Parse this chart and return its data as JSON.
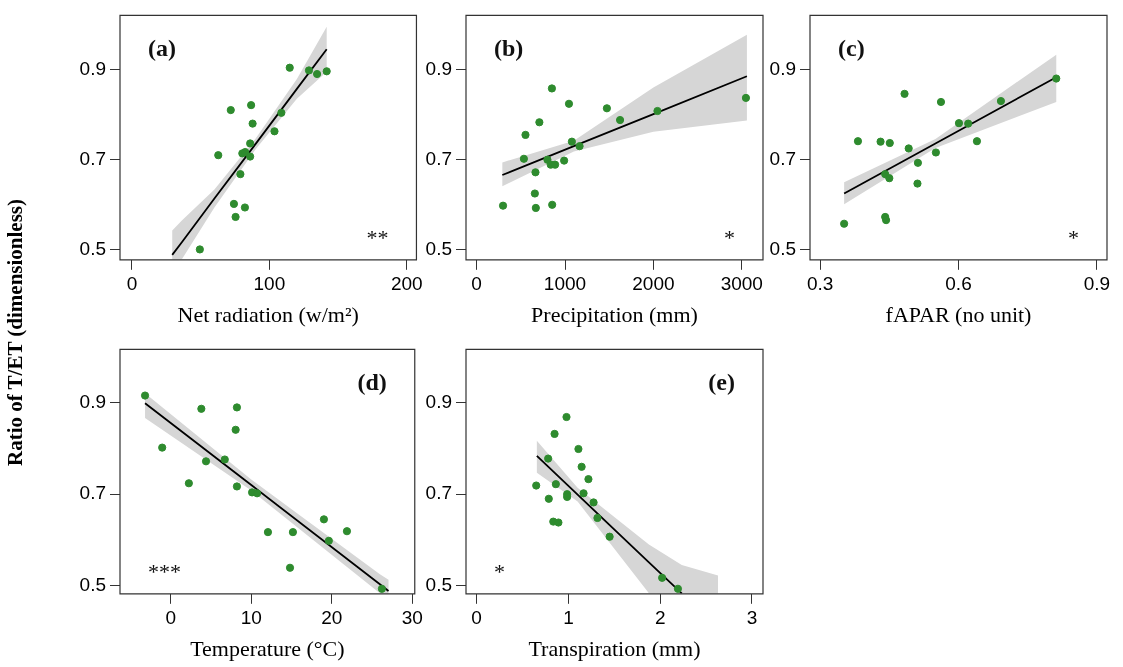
{
  "chart_data": [
    {
      "type": "scatter",
      "xlabel": "Net radiation (w/m²)",
      "ylabel": "Ratio of T/ET (dimensionless)",
      "annotations": [
        "(a)",
        "**"
      ],
      "marker": "circle",
      "legend": false,
      "xlim": [
        -8.7,
        207
      ],
      "xticks": [
        0,
        100,
        200
      ],
      "ylim": [
        0.478,
        1.02
      ],
      "yticks": [
        0.5,
        0.7,
        0.9
      ],
      "series": [
        {
          "color": "#2e8b2e",
          "x": [
            114.8,
            128.8,
            134.7,
            141.7,
            71.9,
            86.7,
            108.7,
            87.8,
            103.7,
            86,
            62.8,
            80.3,
            82.4,
            86,
            78.9,
            74.2,
            82.2,
            75.4,
            49.4
          ],
          "values": [
            0.904,
            0.898,
            0.89,
            0.896,
            0.81,
            0.821,
            0.804,
            0.78,
            0.763,
            0.736,
            0.71,
            0.714,
            0.717,
            0.707,
            0.668,
            0.602,
            0.594,
            0.573,
            0.501
          ]
        },
        {
          "type": "line",
          "marker": "none",
          "color": "#000000",
          "x": [
            29.3,
            36.3,
            60,
            90,
            120,
            141.7
          ],
          "values": [
            0.489,
            0.517,
            0.614,
            0.735,
            0.857,
            0.945
          ],
          "lower": [
            0.478,
            0.479,
            0.594,
            0.723,
            0.835,
            0.895
          ],
          "upper": [
            0.543,
            0.565,
            0.634,
            0.747,
            0.879,
            0.995
          ]
        }
      ]
    },
    {
      "type": "scatter",
      "xlabel": "Precipitation (mm)",
      "annotations": [
        "(b)",
        "*"
      ],
      "marker": "circle",
      "legend": false,
      "xlim": [
        -120,
        3240
      ],
      "xticks": [
        0,
        1000,
        2000,
        3000
      ],
      "ylim": [
        0.478,
        1.02
      ],
      "yticks": [
        0.5,
        0.7,
        0.9
      ],
      "series": [
        {
          "color": "#2e8b2e",
          "x": [
            299,
            535,
            553,
            710,
            852,
            1045,
            1474,
            1623,
            2046,
            3047,
            1078,
            1165,
            801,
            838,
            888,
            990,
            666,
            659,
            670,
            855
          ],
          "values": [
            0.598,
            0.702,
            0.755,
            0.783,
            0.858,
            0.824,
            0.814,
            0.788,
            0.808,
            0.837,
            0.74,
            0.73,
            0.7,
            0.689,
            0.689,
            0.698,
            0.672,
            0.625,
            0.593,
            0.6
          ]
        },
        {
          "type": "line",
          "marker": "none",
          "color": "#000000",
          "x": [
            291,
            1100,
            2000,
            3058
          ],
          "values": [
            0.666,
            0.73,
            0.801,
            0.885
          ],
          "lower": [
            0.641,
            0.718,
            0.762,
            0.787
          ],
          "upper": [
            0.694,
            0.742,
            0.86,
            0.977
          ]
        }
      ]
    },
    {
      "type": "scatter",
      "xlabel": "fAPAR (no unit)",
      "annotations": [
        "(c)",
        "*"
      ],
      "marker": "circle",
      "legend": false,
      "xlim": [
        0.278,
        0.922
      ],
      "xticks": [
        0.3,
        0.6,
        0.9
      ],
      "ylim": [
        0.478,
        1.02
      ],
      "yticks": [
        0.5,
        0.7,
        0.9
      ],
      "series": [
        {
          "color": "#2e8b2e",
          "x": [
            0.352,
            0.382,
            0.431,
            0.451,
            0.483,
            0.492,
            0.512,
            0.441,
            0.45,
            0.511,
            0.441,
            0.443,
            0.551,
            0.562,
            0.601,
            0.621,
            0.64,
            0.692,
            0.812
          ],
          "values": [
            0.558,
            0.741,
            0.74,
            0.737,
            0.846,
            0.725,
            0.693,
            0.668,
            0.659,
            0.647,
            0.573,
            0.566,
            0.716,
            0.828,
            0.781,
            0.78,
            0.741,
            0.83,
            0.88
          ]
        },
        {
          "type": "line",
          "marker": "none",
          "color": "#000000",
          "x": [
            0.352,
            0.55,
            0.812
          ],
          "values": [
            0.625,
            0.736,
            0.883
          ],
          "lower": [
            0.601,
            0.726,
            0.828
          ],
          "upper": [
            0.65,
            0.746,
            0.933
          ]
        }
      ]
    },
    {
      "type": "scatter",
      "xlabel": "Temperature (°C)",
      "annotations": [
        "(d)",
        "***"
      ],
      "marker": "circle",
      "legend": false,
      "xlim": [
        -6.3,
        30.3
      ],
      "xticks": [
        0,
        10,
        20,
        30
      ],
      "ylim": [
        0.482,
        1.017
      ],
      "yticks": [
        0.5,
        0.7,
        0.9
      ],
      "series": [
        {
          "color": "#2e8b2e",
          "x": [
            -3.19,
            -1.06,
            3.8,
            8.22,
            8.06,
            4.38,
            6.71,
            2.25,
            8.22,
            10.1,
            10.72,
            12.07,
            15.17,
            14.81,
            19.02,
            21.88,
            19.63,
            26.22
          ],
          "values": [
            0.916,
            0.802,
            0.887,
            0.89,
            0.841,
            0.772,
            0.776,
            0.724,
            0.717,
            0.704,
            0.702,
            0.617,
            0.617,
            0.539,
            0.645,
            0.619,
            0.598,
            0.493
          ]
        },
        {
          "type": "line",
          "marker": "none",
          "color": "#000000",
          "x": [
            -3.19,
            10,
            25.97,
            27.04
          ],
          "values": [
            0.899,
            0.72,
            0.503,
            0.488
          ],
          "lower": [
            0.867,
            0.708,
            0.483,
            0.482
          ],
          "upper": [
            0.921,
            0.732,
            0.525,
            0.513
          ]
        }
      ]
    },
    {
      "type": "scatter",
      "xlabel": "Transpiration (mm)",
      "annotations": [
        "(e)",
        "*"
      ],
      "marker": "circle",
      "legend": false,
      "xlim": [
        -0.116,
        3.12
      ],
      "xticks": [
        0,
        1,
        2,
        3
      ],
      "ylim": [
        0.482,
        1.017
      ],
      "yticks": [
        0.5,
        0.7,
        0.9
      ],
      "series": [
        {
          "color": "#2e8b2e",
          "x": [
            0.979,
            0.849,
            1.109,
            0.779,
            1.144,
            1.218,
            0.649,
            0.863,
            0.986,
            0.986,
            1.165,
            0.786,
            1.274,
            1.316,
            0.835,
            0.891,
            1.449,
            2.021,
            2.193
          ],
          "values": [
            0.869,
            0.832,
            0.799,
            0.778,
            0.76,
            0.733,
            0.719,
            0.722,
            0.7,
            0.694,
            0.702,
            0.69,
            0.682,
            0.648,
            0.64,
            0.638,
            0.607,
            0.517,
            0.493
          ]
        },
        {
          "type": "line",
          "marker": "none",
          "color": "#000000",
          "x": [
            0.656,
            1.1,
            1.877,
            2.235,
            2.63
          ],
          "values": [
            0.784,
            0.699,
            0.551,
            0.483,
            null
          ],
          "lower": [
            0.747,
            0.684,
            0.483,
            0.482,
            0.482
          ],
          "upper": [
            0.817,
            0.714,
            0.59,
            0.545,
            0.522
          ]
        }
      ]
    }
  ]
}
